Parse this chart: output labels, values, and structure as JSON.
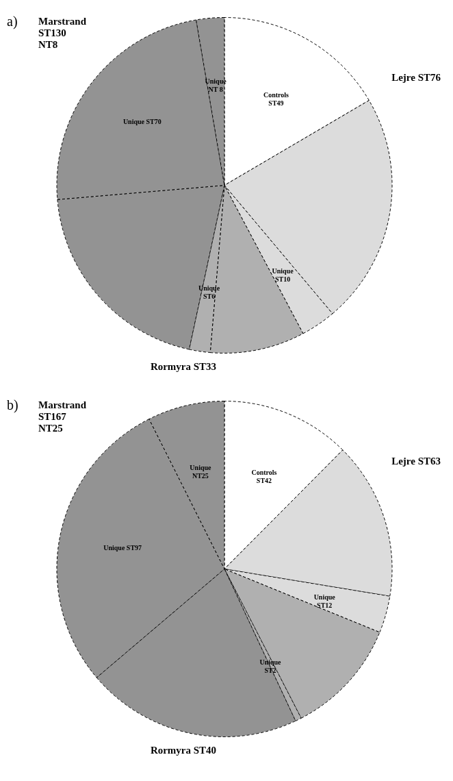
{
  "chart_data": [
    {
      "type": "pie",
      "categories": [
        "Controls\nST49",
        null,
        "Unique\nST10",
        null,
        "Unique\nST6",
        null,
        "Unique ST70",
        "Unique\nNT 8"
      ],
      "values": [
        49,
        66,
        10,
        27,
        6,
        60,
        70,
        8
      ],
      "colors": [
        "#ffffff",
        "#dcdcdc",
        "#dcdcdc",
        "#b0b0b0",
        "#b0b0b0",
        "#939393",
        "#939393",
        "#939393"
      ],
      "annotations": [
        "a)",
        "Marstrand\nST130\nNT8",
        "Lejre ST76",
        "Rormyra ST33"
      ]
    },
    {
      "type": "pie",
      "categories": [
        "Controls\nST42",
        null,
        "Unique\nST12",
        null,
        "Unique\nST2",
        null,
        "Unique ST97",
        "Unique\nNT25"
      ],
      "values": [
        42,
        51,
        12,
        38,
        2,
        70,
        97,
        25
      ],
      "colors": [
        "#ffffff",
        "#dcdcdc",
        "#dcdcdc",
        "#b0b0b0",
        "#b0b0b0",
        "#939393",
        "#939393",
        "#939393"
      ],
      "annotations": [
        "b)",
        "Marstrand\nST167\nNT25",
        "Lejre ST63",
        "Rormyra ST40"
      ]
    }
  ]
}
